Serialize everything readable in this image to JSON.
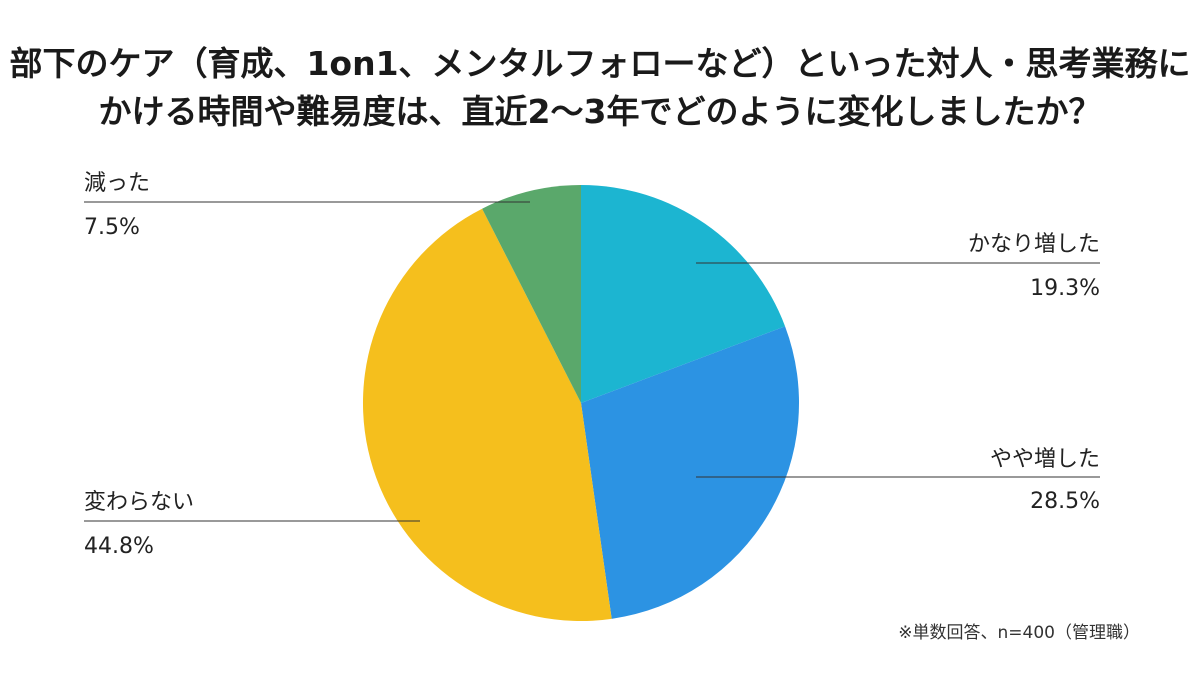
{
  "title_lines": [
    "部下のケア（育成、1on1、メンタルフォローなど）といった対人・思考業務に",
    "かける時間や難易度は、直近2〜3年でどのように変化しましたか？"
  ],
  "note": "※単数回答、n=400（管理職）",
  "chart_data": {
    "type": "pie",
    "title": "部下のケア（育成、1on1、メンタルフォローなど）といった対人・思考業務にかける時間や難易度は、直近2〜3年でどのように変化しましたか？",
    "start": "12 o'clock, clockwise",
    "slices": [
      {
        "label": "かなり増した",
        "value": 19.3,
        "value_text": "19.3%",
        "color": "#1cb5d1",
        "side": "right"
      },
      {
        "label": "やや増した",
        "value": 28.5,
        "value_text": "28.5%",
        "color": "#2c93e3",
        "side": "right"
      },
      {
        "label": "変わらない",
        "value": 44.8,
        "value_text": "44.8%",
        "color": "#f5bf1d",
        "side": "left"
      },
      {
        "label": "減った",
        "value": 7.5,
        "value_text": "7.5%",
        "color": "#5aa86b",
        "side": "left"
      }
    ]
  }
}
